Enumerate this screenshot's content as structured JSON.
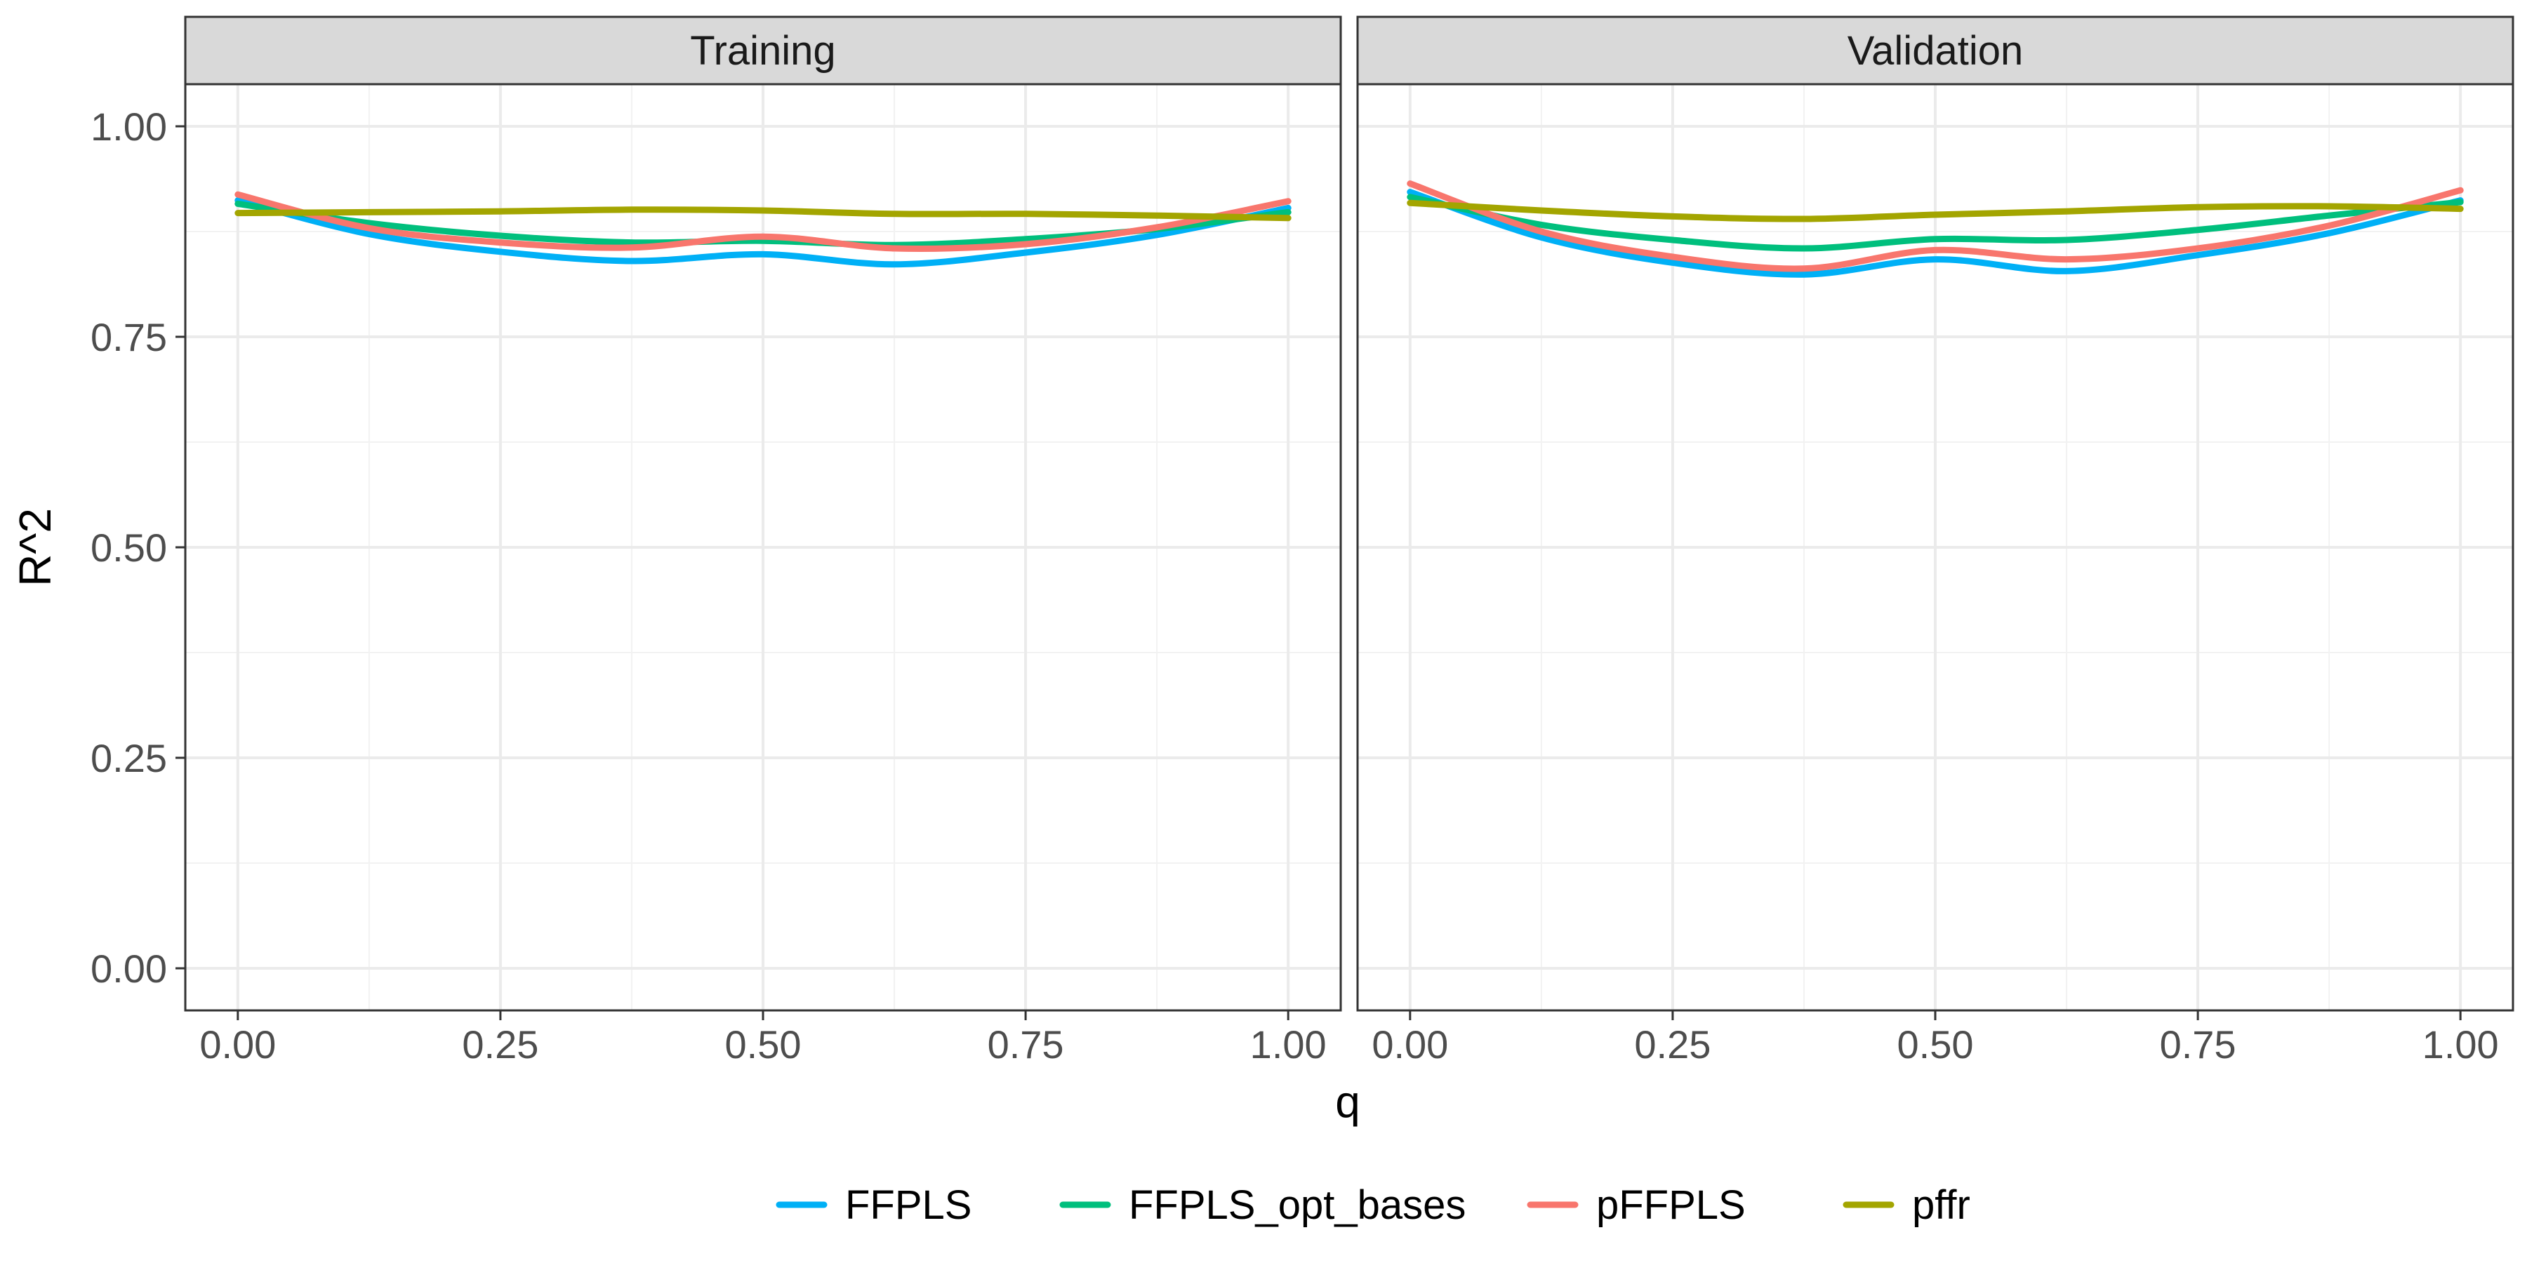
{
  "chart_data": {
    "type": "line",
    "ylabel": "R^2",
    "xlabel": "q",
    "xlim": [
      -0.05,
      1.05
    ],
    "ylim": [
      -0.05,
      1.05
    ],
    "x_ticks": [
      0.0,
      0.25,
      0.5,
      0.75,
      1.0
    ],
    "x_tick_labels": [
      "0.00",
      "0.25",
      "0.50",
      "0.75",
      "1.00"
    ],
    "y_ticks": [
      0.0,
      0.25,
      0.5,
      0.75,
      1.0
    ],
    "y_tick_labels": [
      "0.00",
      "0.25",
      "0.50",
      "0.75",
      "1.00"
    ],
    "grid": true,
    "legend_position": "bottom",
    "series_colors": {
      "FFPLS": "#00B0F6",
      "FFPLS_opt_bases": "#00BF7D",
      "pFFPLS": "#F8766D",
      "pffr": "#A3A500"
    },
    "legend": [
      "FFPLS",
      "FFPLS_opt_bases",
      "pFFPLS",
      "pffr"
    ],
    "panels": [
      {
        "title": "Training",
        "x": [
          0.0,
          0.125,
          0.25,
          0.375,
          0.5,
          0.625,
          0.75,
          0.875,
          1.0
        ],
        "series": [
          {
            "name": "FFPLS",
            "values": [
              0.912,
              0.872,
              0.851,
              0.84,
              0.848,
              0.836,
              0.85,
              0.871,
              0.903
            ]
          },
          {
            "name": "FFPLS_opt_bases",
            "values": [
              0.908,
              0.885,
              0.87,
              0.862,
              0.864,
              0.859,
              0.866,
              0.878,
              0.898
            ]
          },
          {
            "name": "pFFPLS",
            "values": [
              0.919,
              0.879,
              0.862,
              0.856,
              0.869,
              0.855,
              0.86,
              0.88,
              0.911
            ]
          },
          {
            "name": "pffr",
            "values": [
              0.897,
              0.898,
              0.899,
              0.901,
              0.9,
              0.896,
              0.896,
              0.894,
              0.891
            ]
          }
        ]
      },
      {
        "title": "Validation",
        "x": [
          0.0,
          0.125,
          0.25,
          0.375,
          0.5,
          0.625,
          0.75,
          0.875,
          1.0
        ],
        "series": [
          {
            "name": "FFPLS",
            "values": [
              0.922,
              0.868,
              0.838,
              0.824,
              0.842,
              0.828,
              0.847,
              0.873,
              0.912
            ]
          },
          {
            "name": "FFPLS_opt_bases",
            "values": [
              0.916,
              0.883,
              0.865,
              0.855,
              0.866,
              0.865,
              0.877,
              0.894,
              0.91
            ]
          },
          {
            "name": "pFFPLS",
            "values": [
              0.932,
              0.875,
              0.845,
              0.831,
              0.853,
              0.842,
              0.855,
              0.882,
              0.924
            ]
          },
          {
            "name": "pffr",
            "values": [
              0.909,
              0.9,
              0.893,
              0.89,
              0.895,
              0.899,
              0.904,
              0.905,
              0.902
            ]
          }
        ]
      }
    ]
  }
}
